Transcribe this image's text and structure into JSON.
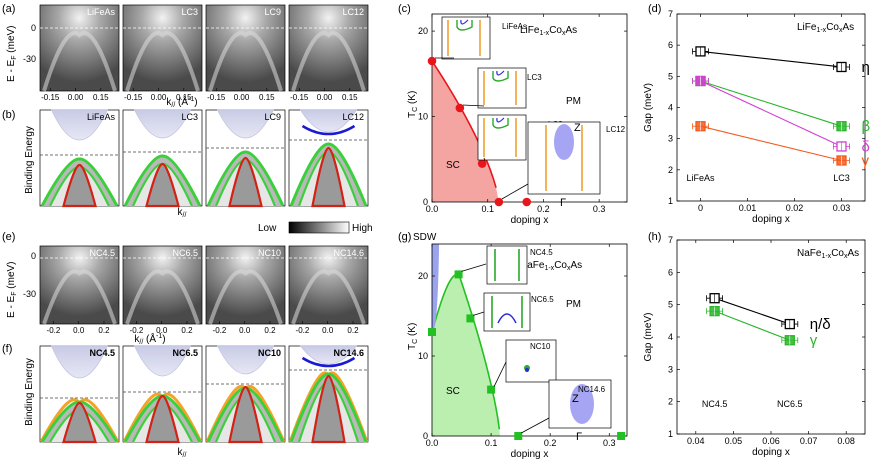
{
  "panel_letters": {
    "a": "(a)",
    "b": "(b)",
    "c": "(c)",
    "d": "(d)",
    "e": "(e)",
    "f": "(f)",
    "g": "(g)",
    "h": "(h)"
  },
  "top_arpes": {
    "labels": [
      "LiFeAs",
      "LC3",
      "LC9",
      "LC12"
    ],
    "ylabel": "E - E",
    "ylabel_sub": "F",
    "ylabel_unit": " (meV)",
    "yticks": [
      "0",
      "-30"
    ],
    "xticks": [
      "-0.15",
      "0.00",
      "0.15"
    ],
    "xlabel_pre": "k",
    "xlabel_sub": "//",
    "xlabel_unit": " (Å",
    "xlabel_sup": "-1",
    "xlabel_end": ")"
  },
  "top_schem": {
    "labels": [
      "LiFeAs",
      "LC3",
      "LC9",
      "LC12"
    ],
    "ylabel": "Binding Energy",
    "xlabel_pre": "k",
    "xlabel_sub": "//"
  },
  "colorbar": {
    "low": "Low",
    "high": "High"
  },
  "bot_arpes": {
    "labels": [
      "NC4.5",
      "NC6.5",
      "NC10",
      "NC14.6"
    ],
    "ylabel": "E - E",
    "ylabel_sub": "F",
    "ylabel_unit": " (meV)",
    "yticks": [
      "0",
      "-30"
    ],
    "xticks": [
      "-0.2",
      "0.0",
      "0.2"
    ],
    "xlabel_pre": "k",
    "xlabel_sub": "//",
    "xlabel_unit": " (Å",
    "xlabel_sup": "-1",
    "xlabel_end": ")"
  },
  "bot_schem": {
    "labels": [
      "NC4.5",
      "NC6.5",
      "NC10",
      "NC14.6"
    ],
    "ylabel": "Binding Energy",
    "xlabel_pre": "k",
    "xlabel_sub": "//"
  },
  "chart_data": [
    {
      "id": "c",
      "type": "scatter",
      "title_pre": "LiFe",
      "title_sub1": "1-x",
      "title_mid": "Co",
      "title_sub2": "x",
      "title_end": "As",
      "xlabel": "doping x",
      "ylabel": "T",
      "ylabel_sub": "C",
      "ylabel_unit": " (K)",
      "xlim": [
        0,
        0.35
      ],
      "ylim": [
        0,
        22
      ],
      "xticks": [
        "0.0",
        "0.1",
        "0.2",
        "0.3"
      ],
      "yticks": [
        "0",
        "10",
        "20"
      ],
      "points": [
        {
          "x": 0.0,
          "y": 16.5
        },
        {
          "x": 0.05,
          "y": 11
        },
        {
          "x": 0.09,
          "y": 4.5
        },
        {
          "x": 0.12,
          "y": 0
        },
        {
          "x": 0.17,
          "y": 0
        }
      ],
      "regions": {
        "sc": "SC",
        "pm": "PM"
      },
      "inset_labels": [
        "LiFeAs",
        "LC3",
        "LC9",
        "LC12"
      ],
      "bz_labels": {
        "z": "Z",
        "g": "Γ"
      },
      "color": "#e8151b"
    },
    {
      "id": "d",
      "type": "line",
      "title_pre": "LiFe",
      "title_sub1": "1-x",
      "title_mid": "Co",
      "title_sub2": "x",
      "title_end": "As",
      "xlabel": "doping x",
      "ylabel": "Gap (meV)",
      "xlim": [
        -0.005,
        0.035
      ],
      "ylim": [
        1,
        7
      ],
      "xticks": [
        "0",
        "0.01",
        "0.02",
        "0.03"
      ],
      "yticks": [
        "1",
        "2",
        "3",
        "4",
        "5",
        "6",
        "7"
      ],
      "x": [
        0,
        0.03
      ],
      "series": [
        {
          "name": "η",
          "values": [
            5.8,
            5.3
          ],
          "color": "#000000"
        },
        {
          "name": "β",
          "values": [
            4.85,
            3.4
          ],
          "color": "#2ab52a"
        },
        {
          "name": "δ",
          "values": [
            4.85,
            2.75
          ],
          "color": "#d23ed2"
        },
        {
          "name": "γ",
          "values": [
            3.4,
            2.3
          ],
          "color": "#f25a1c"
        }
      ],
      "xcat": [
        "LiFeAs",
        "LC3"
      ]
    },
    {
      "id": "g",
      "type": "scatter",
      "title_pre": "NaFe",
      "title_sub1": "1-x",
      "title_mid": "Co",
      "title_sub2": "x",
      "title_end": "As",
      "xlabel": "doping x",
      "ylabel": "T",
      "ylabel_sub": "C",
      "ylabel_unit": " (K)",
      "xlim": [
        0,
        0.33
      ],
      "ylim": [
        0,
        24
      ],
      "xticks": [
        "0.0",
        "0.1",
        "0.2",
        "0.3"
      ],
      "yticks": [
        "0",
        "10",
        "20"
      ],
      "points": [
        {
          "x": 0.0,
          "y": 13
        },
        {
          "x": 0.045,
          "y": 20.2
        },
        {
          "x": 0.065,
          "y": 14.7
        },
        {
          "x": 0.1,
          "y": 5.8
        },
        {
          "x": 0.146,
          "y": 0
        },
        {
          "x": 0.32,
          "y": 0
        }
      ],
      "regions": {
        "sc": "SC",
        "pm": "PM",
        "sdw": "SDW"
      },
      "inset_labels": [
        "NC4.5",
        "NC6.5",
        "NC10",
        "NC14.6"
      ],
      "bz_labels": {
        "z": "Z",
        "g": "Γ"
      },
      "color": "#22c022"
    },
    {
      "id": "h",
      "type": "line",
      "title_pre": "NaFe",
      "title_sub1": "1-x",
      "title_mid": "Co",
      "title_sub2": "x",
      "title_end": "As",
      "xlabel": "doping x",
      "ylabel": "Gap (meV)",
      "xlim": [
        0.035,
        0.085
      ],
      "ylim": [
        1,
        7
      ],
      "xticks": [
        "0.04",
        "0.05",
        "0.06",
        "0.07",
        "0.08"
      ],
      "yticks": [
        "1",
        "2",
        "3",
        "4",
        "5",
        "6",
        "7"
      ],
      "x": [
        0.045,
        0.065
      ],
      "series": [
        {
          "name": "η/δ",
          "values": [
            5.2,
            4.4
          ],
          "color": "#000000"
        },
        {
          "name": "γ",
          "values": [
            4.8,
            3.9
          ],
          "color": "#2ab52a"
        }
      ],
      "xcat": [
        "NC4.5",
        "NC6.5"
      ]
    }
  ]
}
